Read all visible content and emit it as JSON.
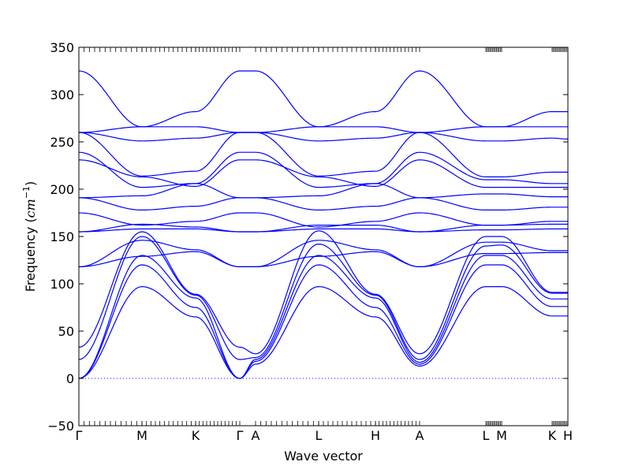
{
  "chart_data": {
    "type": "line",
    "title": "",
    "xlabel": "Wave vector",
    "ylabel": "Frequency (cm⁻¹)",
    "ylabel_parts": {
      "prefix": "Frequency (",
      "unit": "cm",
      "exponent": "−1",
      "suffix": ")"
    },
    "ylim": [
      -50,
      350
    ],
    "yticks": [
      -50,
      0,
      50,
      100,
      150,
      200,
      250,
      300,
      350
    ],
    "grid": false,
    "legend": "none",
    "colors": {
      "bands": "#0000ff",
      "zero_line": "#0000ff",
      "axes": "#000000"
    },
    "path_segments": [
      {
        "labels": [
          "Γ",
          "M",
          "K",
          "Γ"
        ],
        "positions": [
          0,
          1,
          1.85,
          2.55
        ]
      },
      {
        "labels": [
          "A",
          "L",
          "H",
          "A"
        ],
        "positions": [
          2.8,
          3.8,
          4.7,
          5.4
        ]
      },
      {
        "labels": [
          "L",
          "M"
        ],
        "positions": [
          6.45,
          6.7
        ]
      },
      {
        "labels": [
          "K",
          "H"
        ],
        "positions": [
          7.5,
          7.75
        ]
      }
    ],
    "x_tick_labels": [
      {
        "label": "Γ",
        "x": 0
      },
      {
        "label": "M",
        "x": 1
      },
      {
        "label": "K",
        "x": 1.85
      },
      {
        "label": "Γ",
        "x": 2.55
      },
      {
        "label": "A",
        "x": 2.8
      },
      {
        "label": "L",
        "x": 3.8
      },
      {
        "label": "H",
        "x": 4.7
      },
      {
        "label": "A",
        "x": 5.4
      },
      {
        "label": "L",
        "x": 6.45
      },
      {
        "label": "M",
        "x": 6.7
      },
      {
        "label": "K",
        "x": 7.5
      },
      {
        "label": "H",
        "x": 7.75
      }
    ],
    "xlim": [
      0,
      7.75
    ],
    "series": [
      {
        "values": [
          [
            0,
            0
          ],
          [
            1,
            97
          ],
          [
            1.85,
            65
          ],
          [
            2.55,
            0
          ],
          [
            2.8,
            15
          ],
          [
            3.8,
            97
          ],
          [
            4.7,
            65
          ],
          [
            5.4,
            13
          ],
          [
            6.45,
            97
          ],
          [
            6.7,
            97
          ],
          [
            7.5,
            66
          ],
          [
            7.75,
            66
          ]
        ]
      },
      {
        "values": [
          [
            0,
            0
          ],
          [
            1,
            120
          ],
          [
            1.85,
            75
          ],
          [
            2.55,
            0
          ],
          [
            2.8,
            18
          ],
          [
            3.8,
            120
          ],
          [
            4.7,
            75
          ],
          [
            5.4,
            15
          ],
          [
            6.45,
            120
          ],
          [
            6.7,
            120
          ],
          [
            7.5,
            76
          ],
          [
            7.75,
            76
          ]
        ]
      },
      {
        "values": [
          [
            0,
            0
          ],
          [
            1,
            130
          ],
          [
            1.85,
            85
          ],
          [
            2.55,
            0
          ],
          [
            2.8,
            20
          ],
          [
            3.8,
            130
          ],
          [
            4.7,
            85
          ],
          [
            5.4,
            17
          ],
          [
            6.45,
            130
          ],
          [
            6.7,
            130
          ],
          [
            7.5,
            84
          ],
          [
            7.75,
            84
          ]
        ]
      },
      {
        "values": [
          [
            0,
            20
          ],
          [
            1,
            150
          ],
          [
            1.85,
            88
          ],
          [
            2.55,
            20
          ],
          [
            2.8,
            22
          ],
          [
            3.8,
            142
          ],
          [
            4.7,
            88
          ],
          [
            5.4,
            20
          ],
          [
            6.45,
            140
          ],
          [
            6.7,
            141
          ],
          [
            7.5,
            90
          ],
          [
            7.75,
            90
          ]
        ]
      },
      {
        "values": [
          [
            0,
            33
          ],
          [
            1,
            155
          ],
          [
            1.85,
            89
          ],
          [
            2.55,
            33
          ],
          [
            2.8,
            26
          ],
          [
            3.8,
            156
          ],
          [
            4.7,
            89
          ],
          [
            5.4,
            26
          ],
          [
            6.45,
            150
          ],
          [
            6.7,
            150
          ],
          [
            7.5,
            91
          ],
          [
            7.75,
            91
          ]
        ]
      },
      {
        "values": [
          [
            0,
            118
          ],
          [
            1,
            129
          ],
          [
            1.85,
            134
          ],
          [
            2.55,
            118
          ],
          [
            2.8,
            118
          ],
          [
            3.8,
            129
          ],
          [
            4.7,
            134
          ],
          [
            5.4,
            118
          ],
          [
            6.45,
            132
          ],
          [
            6.7,
            132
          ],
          [
            7.5,
            133
          ],
          [
            7.75,
            133
          ]
        ]
      },
      {
        "values": [
          [
            0,
            118
          ],
          [
            1,
            146
          ],
          [
            1.85,
            136
          ],
          [
            2.55,
            118
          ],
          [
            2.8,
            118
          ],
          [
            3.8,
            146
          ],
          [
            4.7,
            136
          ],
          [
            5.4,
            118
          ],
          [
            6.45,
            144
          ],
          [
            6.7,
            144
          ],
          [
            7.5,
            135
          ],
          [
            7.75,
            135
          ]
        ]
      },
      {
        "values": [
          [
            0,
            155
          ],
          [
            1,
            158
          ],
          [
            1.85,
            158
          ],
          [
            2.55,
            155
          ],
          [
            2.8,
            155
          ],
          [
            3.8,
            158
          ],
          [
            4.7,
            158
          ],
          [
            5.4,
            155
          ],
          [
            6.45,
            157
          ],
          [
            6.7,
            157
          ],
          [
            7.5,
            158
          ],
          [
            7.75,
            158
          ]
        ]
      },
      {
        "values": [
          [
            0,
            155
          ],
          [
            1,
            163
          ],
          [
            1.85,
            160
          ],
          [
            2.55,
            155
          ],
          [
            2.8,
            155
          ],
          [
            3.8,
            162
          ],
          [
            4.7,
            162
          ],
          [
            5.4,
            155
          ],
          [
            6.45,
            162
          ],
          [
            6.7,
            162
          ],
          [
            7.5,
            163
          ],
          [
            7.75,
            163
          ]
        ]
      },
      {
        "values": [
          [
            0,
            175
          ],
          [
            1,
            162
          ],
          [
            1.85,
            166
          ],
          [
            2.55,
            175
          ],
          [
            2.8,
            175
          ],
          [
            3.8,
            160
          ],
          [
            4.7,
            166
          ],
          [
            5.4,
            175
          ],
          [
            6.45,
            162
          ],
          [
            6.7,
            162
          ],
          [
            7.5,
            166
          ],
          [
            7.75,
            166
          ]
        ]
      },
      {
        "values": [
          [
            0,
            191
          ],
          [
            1,
            178
          ],
          [
            1.85,
            182
          ],
          [
            2.55,
            191
          ],
          [
            2.8,
            191
          ],
          [
            3.8,
            178
          ],
          [
            4.7,
            182
          ],
          [
            5.4,
            191
          ],
          [
            6.45,
            178
          ],
          [
            6.7,
            178
          ],
          [
            7.5,
            181
          ],
          [
            7.75,
            181
          ]
        ]
      },
      {
        "values": [
          [
            0,
            191
          ],
          [
            1,
            193
          ],
          [
            1.85,
            206
          ],
          [
            2.55,
            191
          ],
          [
            2.8,
            191
          ],
          [
            3.8,
            193
          ],
          [
            4.7,
            206
          ],
          [
            5.4,
            191
          ],
          [
            6.45,
            195
          ],
          [
            6.7,
            195
          ],
          [
            7.5,
            192
          ],
          [
            7.75,
            192
          ]
        ]
      },
      {
        "values": [
          [
            0,
            231
          ],
          [
            1,
            213
          ],
          [
            1.85,
            203
          ],
          [
            2.55,
            231
          ],
          [
            2.8,
            231
          ],
          [
            3.8,
            213
          ],
          [
            4.7,
            203
          ],
          [
            5.4,
            231
          ],
          [
            6.45,
            202
          ],
          [
            6.7,
            202
          ],
          [
            7.5,
            202
          ],
          [
            7.75,
            202
          ]
        ]
      },
      {
        "values": [
          [
            0,
            239
          ],
          [
            1,
            202
          ],
          [
            1.85,
            206
          ],
          [
            2.55,
            239
          ],
          [
            2.8,
            239
          ],
          [
            3.8,
            202
          ],
          [
            4.7,
            206
          ],
          [
            5.4,
            239
          ],
          [
            6.45,
            210
          ],
          [
            6.7,
            210
          ],
          [
            7.5,
            206
          ],
          [
            7.75,
            206
          ]
        ]
      },
      {
        "values": [
          [
            0,
            260
          ],
          [
            1,
            214
          ],
          [
            1.85,
            219
          ],
          [
            2.55,
            260
          ],
          [
            2.8,
            260
          ],
          [
            3.8,
            214
          ],
          [
            4.7,
            219
          ],
          [
            5.4,
            260
          ],
          [
            6.45,
            213
          ],
          [
            6.7,
            213
          ],
          [
            7.5,
            218
          ],
          [
            7.75,
            218
          ]
        ]
      },
      {
        "values": [
          [
            0,
            260
          ],
          [
            1,
            251
          ],
          [
            1.85,
            254
          ],
          [
            2.55,
            260
          ],
          [
            2.8,
            260
          ],
          [
            3.8,
            251
          ],
          [
            4.7,
            254
          ],
          [
            5.4,
            260
          ],
          [
            6.45,
            251
          ],
          [
            6.7,
            251
          ],
          [
            7.5,
            254
          ],
          [
            7.75,
            253
          ]
        ]
      },
      {
        "values": [
          [
            0,
            260
          ],
          [
            1,
            266
          ],
          [
            1.85,
            266
          ],
          [
            2.55,
            260
          ],
          [
            2.8,
            260
          ],
          [
            3.8,
            266
          ],
          [
            4.7,
            266
          ],
          [
            5.4,
            260
          ],
          [
            6.45,
            266
          ],
          [
            6.7,
            266
          ],
          [
            7.5,
            266
          ],
          [
            7.75,
            266
          ]
        ]
      },
      {
        "values": [
          [
            0,
            325
          ],
          [
            1,
            266
          ],
          [
            1.85,
            282
          ],
          [
            2.55,
            325
          ],
          [
            2.8,
            325
          ],
          [
            3.8,
            266
          ],
          [
            4.7,
            282
          ],
          [
            5.4,
            325
          ],
          [
            6.45,
            266
          ],
          [
            6.7,
            266
          ],
          [
            7.5,
            282
          ],
          [
            7.75,
            282
          ]
        ]
      }
    ]
  }
}
